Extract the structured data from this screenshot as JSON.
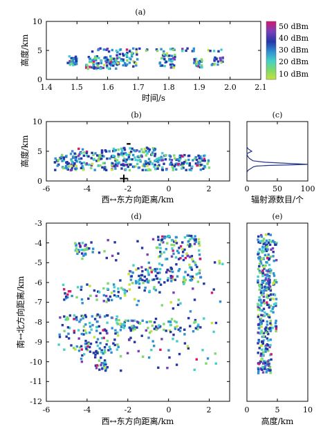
{
  "colorbar": {
    "ticks": [
      "50 dBm",
      "40 dBm",
      "30 dBm",
      "20 dBm",
      "10 dBm"
    ],
    "gradient": [
      "#d7166e",
      "#7a3fb8",
      "#2437a8",
      "#2f8fd3",
      "#44d0c8",
      "#7fd96b",
      "#c4e23a"
    ]
  },
  "chart_data": [
    {
      "panel": "(a)",
      "type": "scatter",
      "xlabel": "时间/s",
      "ylabel": "高度/km",
      "xlim": [
        1.4,
        2.1
      ],
      "ylim": [
        0,
        10
      ],
      "xticks": [
        "1.4",
        "1.5",
        "1.6",
        "1.7",
        "1.8",
        "1.9",
        "2.0",
        "2.1"
      ],
      "yticks": [
        "0",
        "5",
        "10"
      ],
      "clusters": [
        {
          "x": [
            1.47,
            1.5
          ],
          "y": [
            2.3,
            4.2
          ]
        },
        {
          "x": [
            1.53,
            1.63
          ],
          "y": [
            1.8,
            4.0
          ]
        },
        {
          "x": [
            1.63,
            1.7
          ],
          "y": [
            2.2,
            4.8
          ]
        },
        {
          "x": [
            1.77,
            1.82
          ],
          "y": [
            2.0,
            4.5
          ]
        },
        {
          "x": [
            1.88,
            1.91
          ],
          "y": [
            2.0,
            3.6
          ]
        },
        {
          "x": [
            1.94,
            1.98
          ],
          "y": [
            2.5,
            4.0
          ]
        },
        {
          "x": [
            1.55,
            2.0
          ],
          "y": [
            4.8,
            5.4
          ]
        }
      ]
    },
    {
      "panel": "(b)",
      "type": "scatter",
      "xlabel": "西↔东方向距离/km",
      "ylabel": "高度/km",
      "xlim": [
        -6,
        3
      ],
      "ylim": [
        0,
        10
      ],
      "xticks": [
        "-6",
        "-4",
        "-2",
        "0",
        "2"
      ],
      "yticks": [
        "0",
        "5",
        "10"
      ],
      "annotations": [
        {
          "text": "-",
          "x": -1.9,
          "y": 6.2
        },
        {
          "text": "+",
          "x": -2.1,
          "y": 0.6
        }
      ],
      "clusters": [
        {
          "x": [
            -5.6,
            2.0
          ],
          "y": [
            1.8,
            4.4
          ]
        },
        {
          "x": [
            -4.8,
            -0.2
          ],
          "y": [
            4.4,
            5.6
          ]
        }
      ]
    },
    {
      "panel": "(c)",
      "type": "line",
      "xlabel": "辐射源数目/个",
      "xlim": [
        0,
        100
      ],
      "ylim": [
        0,
        10
      ],
      "xticks": [
        "0",
        "50",
        "100"
      ],
      "series": [
        {
          "x": [
            0,
            2,
            5,
            8,
            10,
            15,
            35,
            75,
            100,
            70,
            30,
            10,
            4,
            1,
            0
          ],
          "y": [
            1.5,
            1.8,
            2.0,
            2.2,
            2.35,
            2.5,
            2.62,
            2.72,
            2.8,
            2.95,
            3.15,
            3.4,
            3.8,
            4.2,
            4.6
          ]
        },
        {
          "x": [
            0,
            4,
            8,
            5,
            2,
            0
          ],
          "y": [
            4.6,
            4.8,
            5.0,
            5.2,
            5.4,
            5.7
          ]
        }
      ]
    },
    {
      "panel": "(d)",
      "type": "scatter",
      "xlabel": "西↔东方向距离/km",
      "ylabel": "南↔北方向距离/km",
      "xlim": [
        -6,
        3
      ],
      "ylim": [
        -12,
        -3
      ],
      "xticks": [
        "-6",
        "-4",
        "-2",
        "0",
        "2"
      ],
      "yticks": [
        "-3",
        "-4",
        "-5",
        "-6",
        "-7",
        "-8",
        "-9",
        "-10",
        "-11",
        "-12"
      ],
      "clusters": [
        {
          "x": [
            -4.6,
            -3.9
          ],
          "y": [
            -4.6,
            -4.0
          ]
        },
        {
          "x": [
            -0.6,
            1.6
          ],
          "y": [
            -6.0,
            -3.6
          ]
        },
        {
          "x": [
            -2.0,
            -0.5
          ],
          "y": [
            -6.5,
            -5.2
          ]
        },
        {
          "x": [
            -5.4,
            -2.4
          ],
          "y": [
            -9.6,
            -7.6
          ]
        },
        {
          "x": [
            -3.6,
            -3.0
          ],
          "y": [
            -10.5,
            -9.4
          ]
        },
        {
          "x": [
            -2.5,
            1.8
          ],
          "y": [
            -8.5,
            -7.9
          ]
        },
        {
          "x": [
            -5.5,
            -2.0
          ],
          "y": [
            -6.9,
            -6.1
          ]
        },
        {
          "x": [
            -4.6,
            2.7
          ],
          "y": [
            -10.5,
            -3.8
          ]
        }
      ]
    },
    {
      "panel": "(e)",
      "type": "scatter",
      "xlabel": "高度/km",
      "xlim": [
        0,
        10
      ],
      "ylim": [
        -12,
        -3
      ],
      "xticks": [
        "0",
        "5",
        "10"
      ],
      "clusters": [
        {
          "x": [
            1.8,
            4.0
          ],
          "y": [
            -10.6,
            -3.5
          ]
        },
        {
          "x": [
            4.2,
            4.9
          ],
          "y": [
            -8.5,
            -3.8
          ]
        }
      ]
    }
  ]
}
